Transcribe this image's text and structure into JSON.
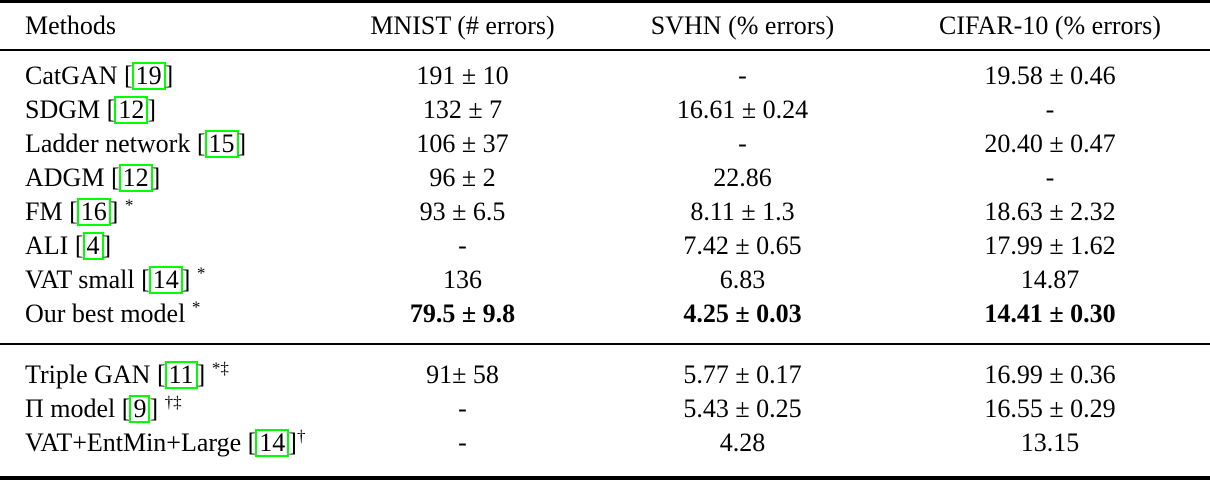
{
  "colors": {
    "text": "#000000",
    "rule": "#000000",
    "citation_box_border": "#00ff00",
    "background": "#ffffff"
  },
  "table": {
    "headers": [
      "Methods",
      "MNIST (# errors)",
      "SVHN (% errors)",
      "CIFAR-10 (% errors)"
    ],
    "sections": [
      {
        "rows": [
          {
            "method": "CatGAN",
            "cite": "19",
            "sup": "",
            "sup_gap": false,
            "bold": false,
            "values": [
              "191 ± 10",
              "-",
              "19.58 ± 0.46"
            ]
          },
          {
            "method": "SDGM",
            "cite": "12",
            "sup": "",
            "sup_gap": false,
            "bold": false,
            "values": [
              "132 ± 7",
              "16.61 ± 0.24",
              "-"
            ]
          },
          {
            "method": "Ladder network",
            "cite": "15",
            "sup": "",
            "sup_gap": false,
            "bold": false,
            "values": [
              "106 ± 37",
              "-",
              "20.40 ± 0.47"
            ]
          },
          {
            "method": "ADGM",
            "cite": "12",
            "sup": "",
            "sup_gap": false,
            "bold": false,
            "values": [
              "96 ± 2",
              "22.86",
              "-"
            ]
          },
          {
            "method": "FM",
            "cite": "16",
            "sup": "*",
            "sup_gap": true,
            "bold": false,
            "values": [
              "93 ± 6.5",
              "8.11 ± 1.3",
              "18.63 ± 2.32"
            ]
          },
          {
            "method": "ALI",
            "cite": "4",
            "sup": "",
            "sup_gap": false,
            "bold": false,
            "values": [
              "-",
              "7.42 ± 0.65",
              "17.99 ± 1.62"
            ]
          },
          {
            "method": "VAT small",
            "cite": "14",
            "sup": "*",
            "sup_gap": true,
            "bold": false,
            "values": [
              "136",
              "6.83",
              "14.87"
            ]
          },
          {
            "method": "Our best model",
            "cite": null,
            "sup": "*",
            "sup_gap": true,
            "bold": true,
            "values": [
              "79.5 ± 9.8",
              "4.25 ± 0.03",
              "14.41 ± 0.30"
            ]
          }
        ]
      },
      {
        "rows": [
          {
            "method": "Triple GAN",
            "cite": "11",
            "sup": "*‡",
            "sup_gap": true,
            "bold": false,
            "values": [
              "91± 58",
              "5.77 ± 0.17",
              "16.99 ± 0.36"
            ]
          },
          {
            "method": "Π model",
            "cite": "9",
            "sup": "†‡",
            "sup_gap": true,
            "bold": false,
            "values": [
              "-",
              "5.43 ± 0.25",
              "16.55 ± 0.29"
            ]
          },
          {
            "method": "VAT+EntMin+Large",
            "cite": "14",
            "sup": "†",
            "sup_gap": false,
            "bold": false,
            "values": [
              "-",
              "4.28",
              "13.15"
            ]
          }
        ]
      }
    ]
  }
}
